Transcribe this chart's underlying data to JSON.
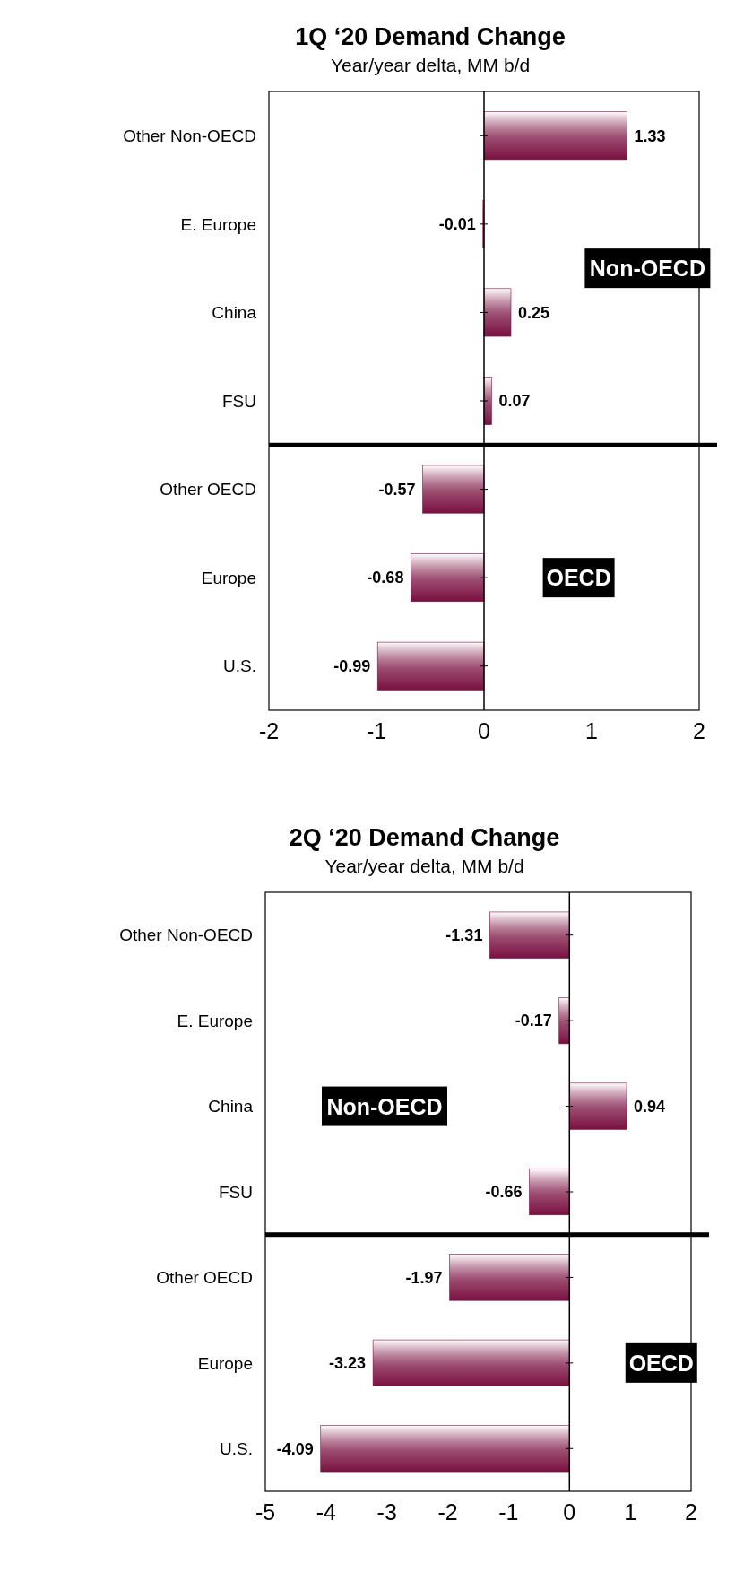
{
  "chart_data": [
    {
      "type": "bar",
      "orientation": "horizontal",
      "title": "1Q ‘20 Demand Change",
      "subtitle": "Year/year delta, MM b/d",
      "categories": [
        "Other Non-OECD",
        "E. Europe",
        "China",
        "FSU",
        "Other OECD",
        "Europe",
        "U.S."
      ],
      "values": [
        1.33,
        -0.01,
        0.25,
        0.07,
        -0.57,
        -0.68,
        -0.99
      ],
      "color": "#7a1040",
      "xlim": [
        -2,
        2
      ],
      "xticks": [
        -2,
        -1,
        0,
        1,
        2
      ],
      "data_labels": true,
      "annotations": [
        "Non-OECD",
        "OECD"
      ]
    },
    {
      "type": "bar",
      "orientation": "horizontal",
      "title": "2Q ‘20 Demand Change",
      "subtitle": "Year/year delta, MM b/d",
      "categories": [
        "Other Non-OECD",
        "E. Europe",
        "China",
        "FSU",
        "Other OECD",
        "Europe",
        "U.S."
      ],
      "values": [
        -1.31,
        -0.17,
        0.94,
        -0.66,
        -1.97,
        -3.23,
        -4.09
      ],
      "color": "#7a1040",
      "xlim": [
        -5,
        2
      ],
      "xticks": [
        -5,
        -4,
        -3,
        -2,
        -1,
        0,
        1,
        2
      ],
      "data_labels": true,
      "annotations": [
        "Non-OECD",
        "OECD"
      ]
    }
  ]
}
